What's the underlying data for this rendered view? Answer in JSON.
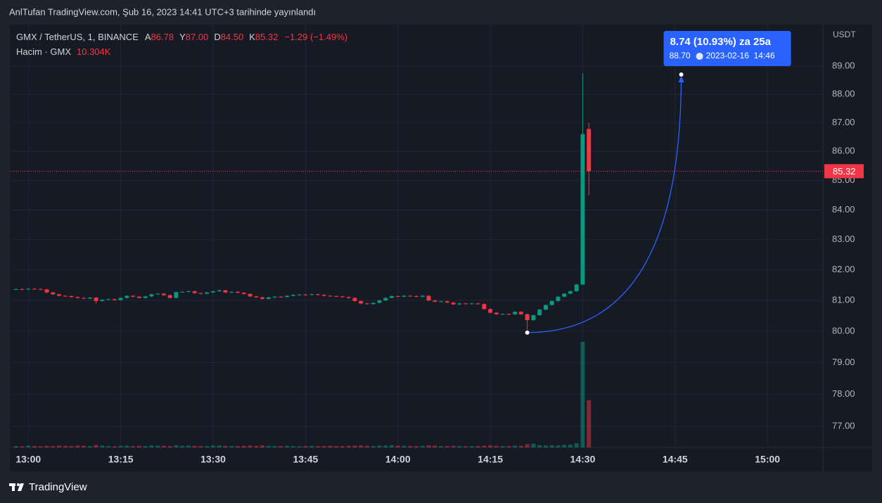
{
  "header": "AnlTufan TradingView.com, Şub 16, 2023 14:41 UTC+3 tarihinde yayınlandı",
  "logo": "TradingView",
  "chart_data": {
    "type": "candlestick",
    "symbol": "GMX / TetherUS, 1, BINANCE",
    "ohlc_legend": [
      {
        "name": "A",
        "value": "86.78"
      },
      {
        "name": "Y",
        "value": "87.00"
      },
      {
        "name": "D",
        "value": "84.50"
      },
      {
        "name": "K",
        "value": "85.32"
      }
    ],
    "change": "−1.29 (−1.49%)",
    "volume_legend": {
      "name": "Hacim · GMX",
      "value": "10.304K"
    },
    "y_unit": "USDT",
    "log_scale": true,
    "grid": true,
    "up_color": "#089981",
    "down_color": "#f23645",
    "x": [
      "12:58",
      "12:59",
      "13:00",
      "13:01",
      "13:02",
      "13:03",
      "13:04",
      "13:05",
      "13:06",
      "13:07",
      "13:08",
      "13:09",
      "13:10",
      "13:11",
      "13:12",
      "13:13",
      "13:14",
      "13:15",
      "13:16",
      "13:17",
      "13:18",
      "13:19",
      "13:20",
      "13:21",
      "13:22",
      "13:23",
      "13:24",
      "13:25",
      "13:26",
      "13:27",
      "13:28",
      "13:29",
      "13:30",
      "13:31",
      "13:32",
      "13:33",
      "13:34",
      "13:35",
      "13:36",
      "13:37",
      "13:38",
      "13:39",
      "13:40",
      "13:41",
      "13:42",
      "13:43",
      "13:44",
      "13:45",
      "13:46",
      "13:47",
      "13:48",
      "13:49",
      "13:50",
      "13:51",
      "13:52",
      "13:53",
      "13:54",
      "13:55",
      "13:56",
      "13:57",
      "13:58",
      "13:59",
      "14:00",
      "14:01",
      "14:02",
      "14:03",
      "14:04",
      "14:05",
      "14:06",
      "14:07",
      "14:08",
      "14:09",
      "14:10",
      "14:11",
      "14:12",
      "14:13",
      "14:14",
      "14:15",
      "14:16",
      "14:17",
      "14:18",
      "14:19",
      "14:20",
      "14:21",
      "14:22",
      "14:23",
      "14:24",
      "14:25",
      "14:26",
      "14:27",
      "14:28",
      "14:29",
      "14:30",
      "14:31"
    ],
    "open": [
      81.36,
      81.37,
      81.36,
      81.38,
      81.37,
      81.36,
      81.26,
      81.2,
      81.15,
      81.14,
      81.11,
      81.08,
      81.06,
      81.09,
      80.98,
      81.02,
      81.04,
      81.01,
      81.08,
      81.15,
      81.12,
      81.08,
      81.13,
      81.2,
      81.22,
      81.17,
      81.08,
      81.27,
      81.28,
      81.3,
      81.24,
      81.22,
      81.26,
      81.3,
      81.33,
      81.26,
      81.28,
      81.25,
      81.21,
      81.13,
      81.1,
      81.05,
      81.1,
      81.12,
      81.11,
      81.15,
      81.18,
      81.19,
      81.18,
      81.2,
      81.18,
      81.15,
      81.14,
      81.13,
      81.11,
      81.08,
      80.98,
      80.9,
      80.88,
      80.92,
      81.0,
      81.08,
      81.14,
      81.12,
      81.15,
      81.14,
      81.12,
      81.15,
      81.0,
      80.96,
      80.97,
      80.93,
      80.87,
      80.9,
      80.89,
      80.9,
      80.88,
      80.72,
      80.6,
      80.55,
      80.56,
      80.55,
      80.63,
      80.55,
      80.36,
      80.52,
      80.7,
      80.85,
      80.98,
      81.12,
      81.22,
      81.3,
      81.52,
      86.78
    ],
    "high": [
      81.39,
      81.39,
      81.4,
      81.4,
      81.39,
      81.38,
      81.28,
      81.22,
      81.17,
      81.16,
      81.13,
      81.1,
      81.11,
      81.11,
      81.04,
      81.06,
      81.06,
      81.1,
      81.17,
      81.17,
      81.14,
      81.15,
      81.22,
      81.24,
      81.24,
      81.19,
      81.29,
      81.3,
      81.32,
      81.32,
      81.26,
      81.28,
      81.32,
      81.35,
      81.35,
      81.3,
      81.3,
      81.27,
      81.23,
      81.15,
      81.12,
      81.12,
      81.14,
      81.14,
      81.17,
      81.2,
      81.21,
      81.21,
      81.22,
      81.22,
      81.2,
      81.17,
      81.16,
      81.15,
      81.13,
      81.1,
      81.0,
      80.92,
      80.94,
      81.02,
      81.1,
      81.16,
      81.16,
      81.17,
      81.17,
      81.16,
      81.17,
      81.17,
      81.02,
      80.99,
      80.99,
      80.95,
      80.92,
      80.92,
      80.92,
      80.92,
      80.9,
      80.74,
      80.62,
      80.58,
      80.58,
      80.65,
      80.65,
      80.57,
      80.54,
      80.72,
      80.87,
      81.0,
      81.14,
      81.24,
      81.32,
      81.54,
      88.74,
      87.0
    ],
    "low": [
      81.34,
      81.34,
      81.34,
      81.35,
      81.34,
      81.24,
      81.18,
      81.13,
      81.12,
      81.09,
      81.06,
      81.04,
      81.04,
      80.9,
      80.96,
      81.0,
      80.99,
      80.99,
      81.06,
      81.1,
      81.06,
      81.06,
      81.11,
      81.18,
      81.15,
      81.06,
      81.06,
      81.25,
      81.26,
      81.22,
      81.2,
      81.2,
      81.24,
      81.28,
      81.24,
      81.24,
      81.23,
      81.19,
      81.11,
      81.08,
      81.03,
      81.03,
      81.08,
      81.09,
      81.09,
      81.13,
      81.16,
      81.16,
      81.16,
      81.16,
      81.13,
      81.12,
      81.11,
      81.09,
      81.06,
      80.96,
      80.88,
      80.86,
      80.86,
      80.9,
      80.98,
      81.06,
      81.1,
      81.1,
      81.12,
      81.1,
      81.1,
      80.98,
      80.94,
      80.94,
      80.91,
      80.85,
      80.85,
      80.87,
      80.87,
      80.86,
      80.7,
      80.58,
      80.53,
      80.53,
      80.53,
      80.53,
      80.53,
      79.96,
      80.34,
      80.5,
      80.68,
      80.83,
      80.96,
      81.1,
      81.2,
      81.28,
      81.5,
      84.5
    ],
    "close": [
      81.37,
      81.36,
      81.38,
      81.37,
      81.36,
      81.26,
      81.2,
      81.15,
      81.14,
      81.11,
      81.08,
      81.06,
      81.09,
      80.98,
      81.02,
      81.04,
      81.01,
      81.08,
      81.15,
      81.12,
      81.08,
      81.13,
      81.2,
      81.22,
      81.17,
      81.08,
      81.27,
      81.28,
      81.3,
      81.24,
      81.22,
      81.26,
      81.3,
      81.33,
      81.26,
      81.28,
      81.25,
      81.21,
      81.13,
      81.1,
      81.05,
      81.1,
      81.12,
      81.11,
      81.15,
      81.18,
      81.19,
      81.18,
      81.2,
      81.18,
      81.15,
      81.14,
      81.13,
      81.11,
      81.08,
      80.98,
      80.9,
      80.88,
      80.92,
      81.0,
      81.08,
      81.14,
      81.12,
      81.15,
      81.14,
      81.12,
      81.15,
      81.0,
      80.96,
      80.97,
      80.93,
      80.87,
      80.9,
      80.89,
      80.9,
      80.88,
      80.72,
      80.6,
      80.55,
      80.56,
      80.55,
      80.63,
      80.55,
      80.36,
      80.52,
      80.7,
      80.85,
      80.98,
      81.12,
      81.22,
      81.3,
      81.52,
      86.6,
      85.32
    ],
    "volume": [
      300,
      250,
      400,
      300,
      250,
      350,
      300,
      400,
      350,
      300,
      400,
      350,
      300,
      550,
      400,
      300,
      250,
      350,
      400,
      300,
      350,
      300,
      450,
      400,
      350,
      300,
      500,
      350,
      400,
      350,
      300,
      300,
      400,
      450,
      350,
      300,
      300,
      350,
      400,
      350,
      450,
      350,
      300,
      300,
      350,
      300,
      250,
      300,
      350,
      300,
      300,
      350,
      300,
      300,
      350,
      400,
      450,
      350,
      300,
      400,
      450,
      500,
      400,
      350,
      300,
      300,
      350,
      450,
      400,
      300,
      300,
      350,
      300,
      250,
      300,
      300,
      400,
      450,
      350,
      300,
      300,
      400,
      350,
      700,
      800,
      500,
      450,
      500,
      450,
      550,
      600,
      900,
      23000,
      10304
    ],
    "last_price": 85.32,
    "xlim": [
      "12:57",
      "15:09"
    ],
    "xticks": [
      "13:00",
      "13:15",
      "13:30",
      "13:45",
      "14:00",
      "14:15",
      "14:30",
      "14:45",
      "15:00"
    ],
    "ylim": [
      76.35,
      90.5
    ],
    "yticks": [
      {
        "value": 77,
        "label": "77.00"
      },
      {
        "value": 78,
        "label": "78.00"
      },
      {
        "value": 79,
        "label": "79.00"
      },
      {
        "value": 80,
        "label": "80.00"
      },
      {
        "value": 81,
        "label": "81.00"
      },
      {
        "value": 82,
        "label": "82.00"
      },
      {
        "value": 83,
        "label": "83.00"
      },
      {
        "value": 84,
        "label": "84.00"
      },
      {
        "value": 85,
        "label": "85.00"
      },
      {
        "value": 86,
        "label": "86.00"
      },
      {
        "value": 87,
        "label": "87.00"
      },
      {
        "value": 88,
        "label": "88.00"
      },
      {
        "value": 89,
        "label": "89.00"
      }
    ],
    "annotation": {
      "text": "8.74 (10.93%) za 25a",
      "start_x": "14:21",
      "start": 79.96,
      "end_x": "14:46",
      "end": {
        "value": 88.7,
        "label": "88.70"
      },
      "end_time": "2023-02-16  14:46",
      "color": "#2962ff"
    }
  }
}
